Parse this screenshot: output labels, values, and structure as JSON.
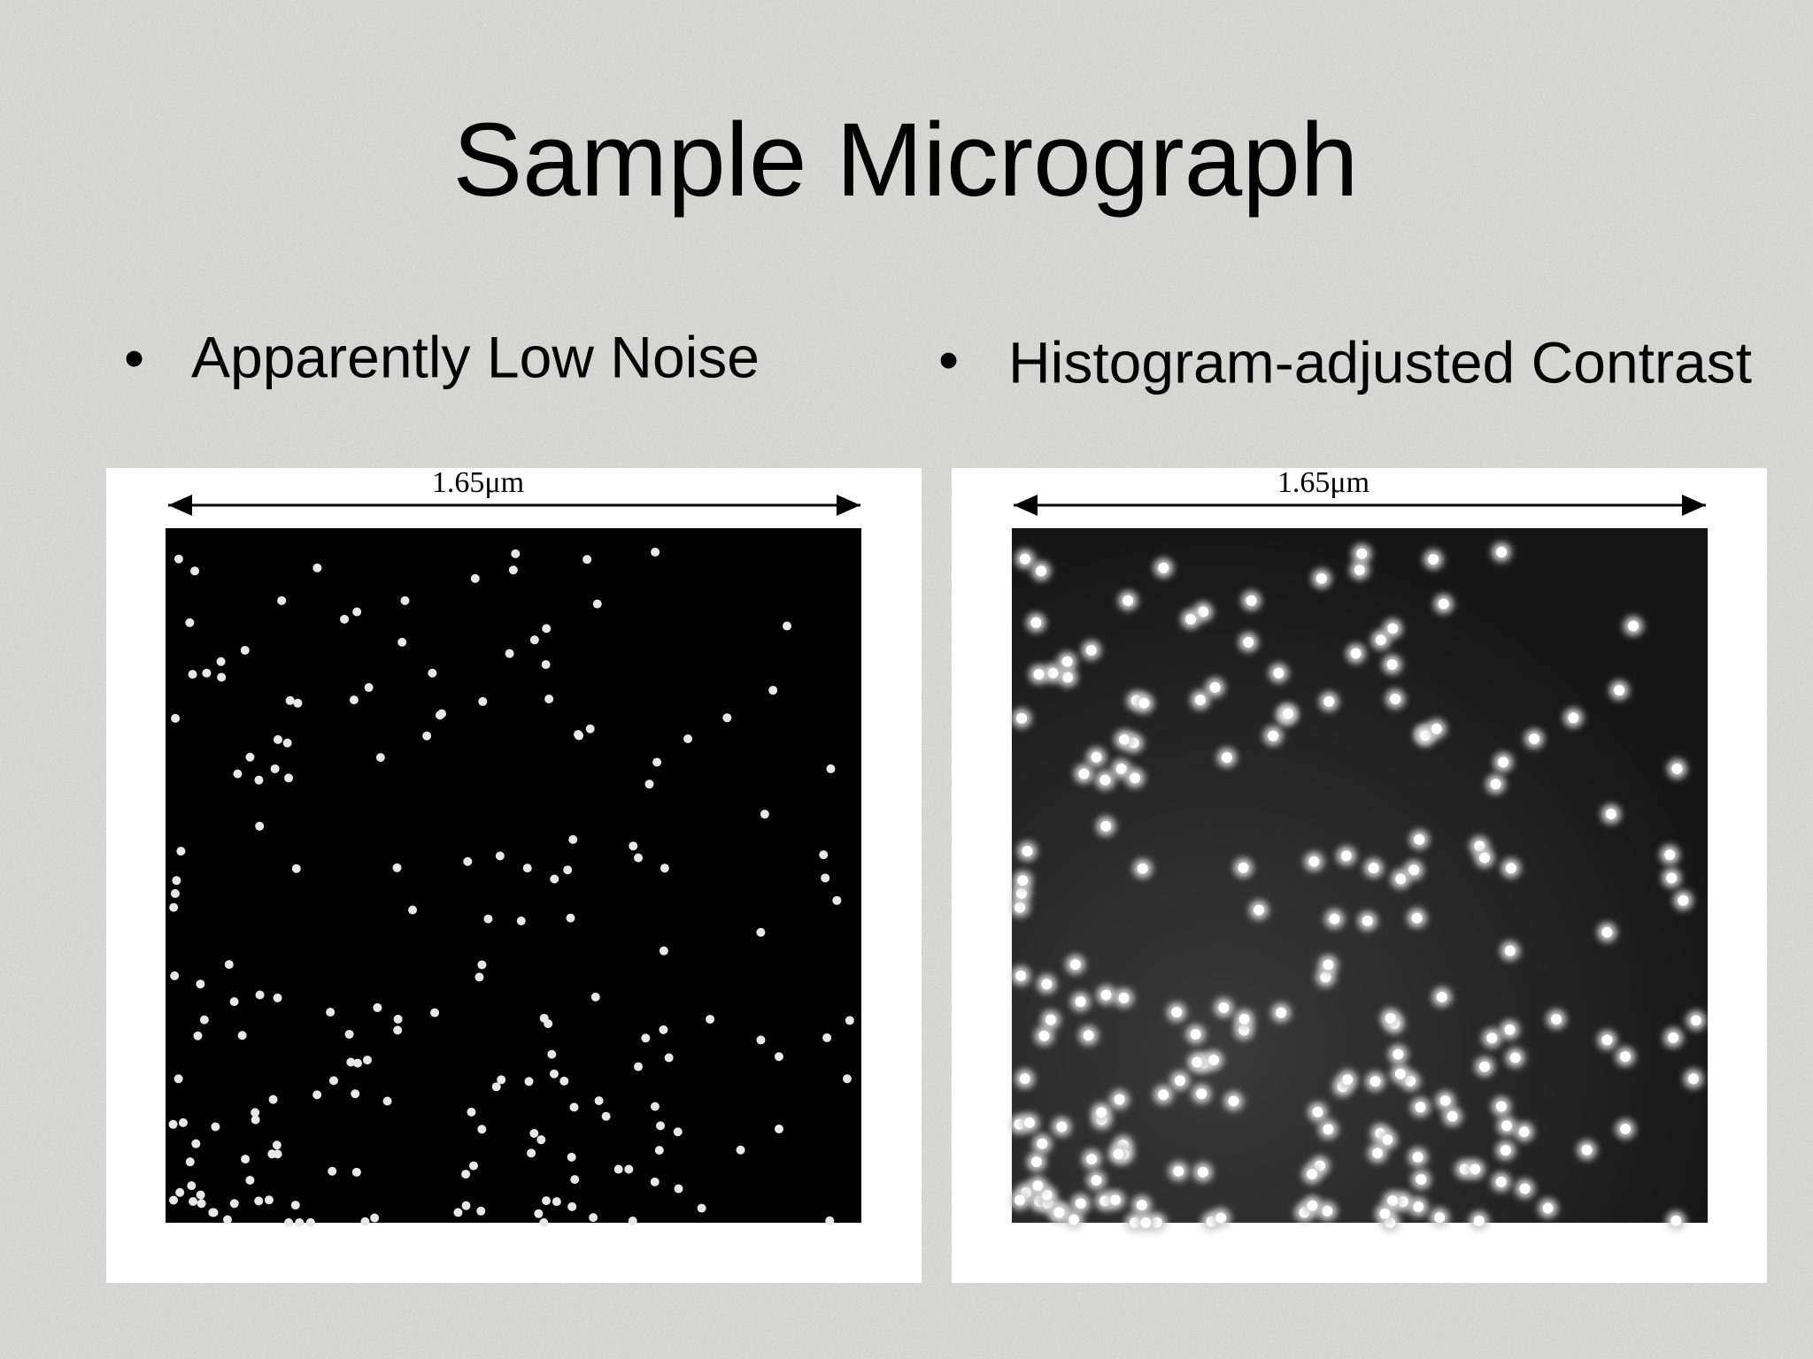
{
  "title": "Sample Micrograph",
  "bullets": [
    "Apparently Low Noise",
    "Histogram-adjusted Contrast"
  ],
  "images": [
    {
      "scale_label": "1.65μm"
    },
    {
      "scale_label": "1.65μm"
    }
  ]
}
